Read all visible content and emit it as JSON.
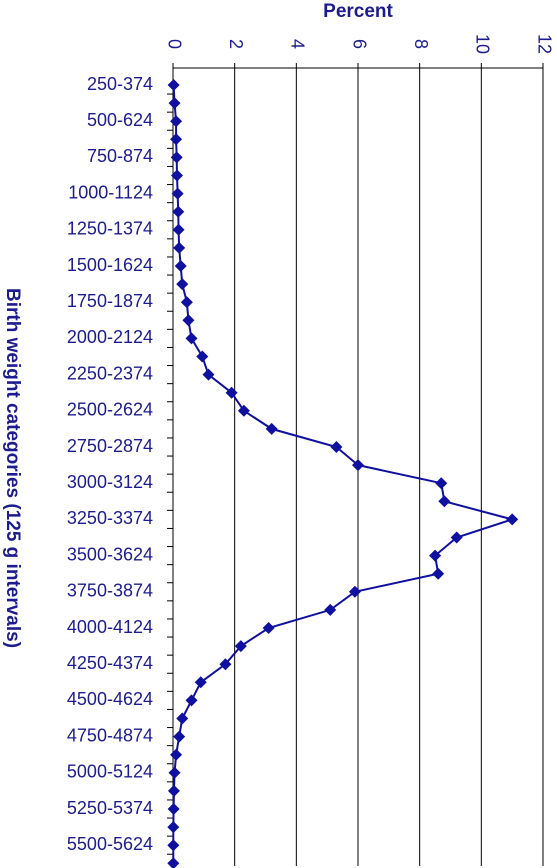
{
  "chart_data": {
    "type": "line",
    "title": "Percent",
    "y_label": "Birth weight categories (125 g intervals)",
    "categories": [
      "250-374",
      null,
      "500-624",
      null,
      "750-874",
      null,
      "1000-1124",
      null,
      "1250-1374",
      null,
      "1500-1624",
      null,
      "1750-1874",
      null,
      "2000-2124",
      null,
      "2250-2374",
      null,
      "2500-2624",
      null,
      "2750-2874",
      null,
      "3000-3124",
      null,
      "3250-3374",
      null,
      "3500-3624",
      null,
      "3750-3874",
      null,
      "4000-4124",
      null,
      "4250-4374",
      null,
      "4500-4624",
      null,
      "4750-4874",
      null,
      "5000-5124",
      null,
      "5250-5374",
      null,
      "5500-5624",
      null
    ],
    "series": [
      {
        "name": "Percent",
        "color": "#1010a0",
        "values": [
          0.02,
          0.05,
          0.1,
          0.1,
          0.12,
          0.13,
          0.15,
          0.17,
          0.18,
          0.2,
          0.25,
          0.3,
          0.45,
          0.5,
          0.6,
          0.95,
          1.15,
          1.9,
          2.3,
          3.2,
          5.3,
          6.0,
          8.7,
          8.8,
          11.0,
          9.2,
          8.5,
          8.6,
          5.9,
          5.1,
          3.1,
          2.2,
          1.7,
          0.9,
          0.6,
          0.3,
          0.2,
          0.1,
          0.05,
          0.03,
          0.02,
          0.01,
          0.01,
          0.01
        ]
      }
    ],
    "xlim": [
      0,
      12
    ],
    "xticks": [
      0,
      2,
      4,
      6,
      8,
      10,
      12
    ],
    "grid": true
  }
}
